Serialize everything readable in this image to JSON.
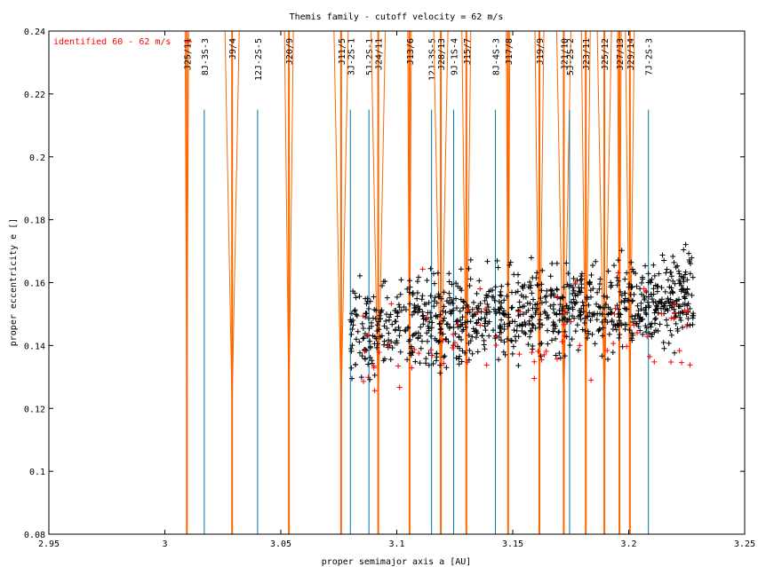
{
  "chart_data": {
    "type": "scatter",
    "title": "Themis family - cutoff velocity = 62 m/s",
    "xlabel": "proper semimajor axis a [AU]",
    "ylabel": "proper eccentricity e []",
    "xlim": [
      2.95,
      3.25
    ],
    "ylim": [
      0.08,
      0.24
    ],
    "xticks": [
      "2.95",
      "3",
      "3.05",
      "3.1",
      "3.15",
      "3.2",
      "3.25"
    ],
    "yticks": [
      "0.08",
      "0.1",
      "0.12",
      "0.14",
      "0.16",
      "0.18",
      "0.2",
      "0.22",
      "0.24"
    ],
    "legend": {
      "position": "top-left",
      "entries": [
        {
          "label": "identified 60 - 62 m/s",
          "color": "#ff0000",
          "marker": "+"
        }
      ]
    },
    "grid": false,
    "colors": {
      "members": "#000000",
      "identified": "#ff0000",
      "mean_motion_resonance": "#ff6600",
      "three_body_resonance": "#0077aa"
    },
    "resonances": [
      {
        "name": "J25/11",
        "a": 3.0095,
        "kind": "two-body"
      },
      {
        "name": "8J-3S-3",
        "a": 3.017,
        "kind": "three-body"
      },
      {
        "name": "J9/4",
        "a": 3.029,
        "kind": "two-body"
      },
      {
        "name": "12J-2S-5",
        "a": 3.04,
        "kind": "three-body"
      },
      {
        "name": "J20/9",
        "a": 3.0535,
        "kind": "two-body"
      },
      {
        "name": "J11/5",
        "a": 3.076,
        "kind": "two-body"
      },
      {
        "name": "3J-2S-1",
        "a": 3.08,
        "kind": "three-body"
      },
      {
        "name": "5J-2S-1",
        "a": 3.088,
        "kind": "three-body"
      },
      {
        "name": "J24/11",
        "a": 3.092,
        "kind": "two-body"
      },
      {
        "name": "J13/6",
        "a": 3.1055,
        "kind": "two-body"
      },
      {
        "name": "12J-3S-5",
        "a": 3.115,
        "kind": "three-body"
      },
      {
        "name": "J28/13",
        "a": 3.119,
        "kind": "two-body"
      },
      {
        "name": "9J-1S-4",
        "a": 3.1245,
        "kind": "three-body"
      },
      {
        "name": "J15/7",
        "a": 3.13,
        "kind": "two-body"
      },
      {
        "name": "8J-4S-3",
        "a": 3.1425,
        "kind": "three-body"
      },
      {
        "name": "J17/8",
        "a": 3.148,
        "kind": "two-body"
      },
      {
        "name": "J19/9",
        "a": 3.1615,
        "kind": "two-body"
      },
      {
        "name": "J21/10",
        "a": 3.172,
        "kind": "two-body"
      },
      {
        "name": "5J-2S-2",
        "a": 3.1745,
        "kind": "three-body"
      },
      {
        "name": "J23/11",
        "a": 3.1815,
        "kind": "two-body"
      },
      {
        "name": "J25/12",
        "a": 3.1895,
        "kind": "two-body"
      },
      {
        "name": "J27/13",
        "a": 3.196,
        "kind": "two-body"
      },
      {
        "name": "J29/14",
        "a": 3.2005,
        "kind": "two-body"
      },
      {
        "name": "7J-2S-3",
        "a": 3.2085,
        "kind": "three-body"
      }
    ],
    "series": [
      {
        "name": "",
        "color": "#000000",
        "n_points": 1000,
        "a_range": [
          3.08,
          3.228
        ],
        "e_center": 0.15,
        "e_spread": 0.01
      },
      {
        "name": "identified 60 - 62 m/s",
        "color": "#ff0000",
        "n_points": 80,
        "a_range": [
          3.085,
          3.228
        ],
        "e_center": 0.148,
        "e_spread": 0.013
      }
    ]
  }
}
